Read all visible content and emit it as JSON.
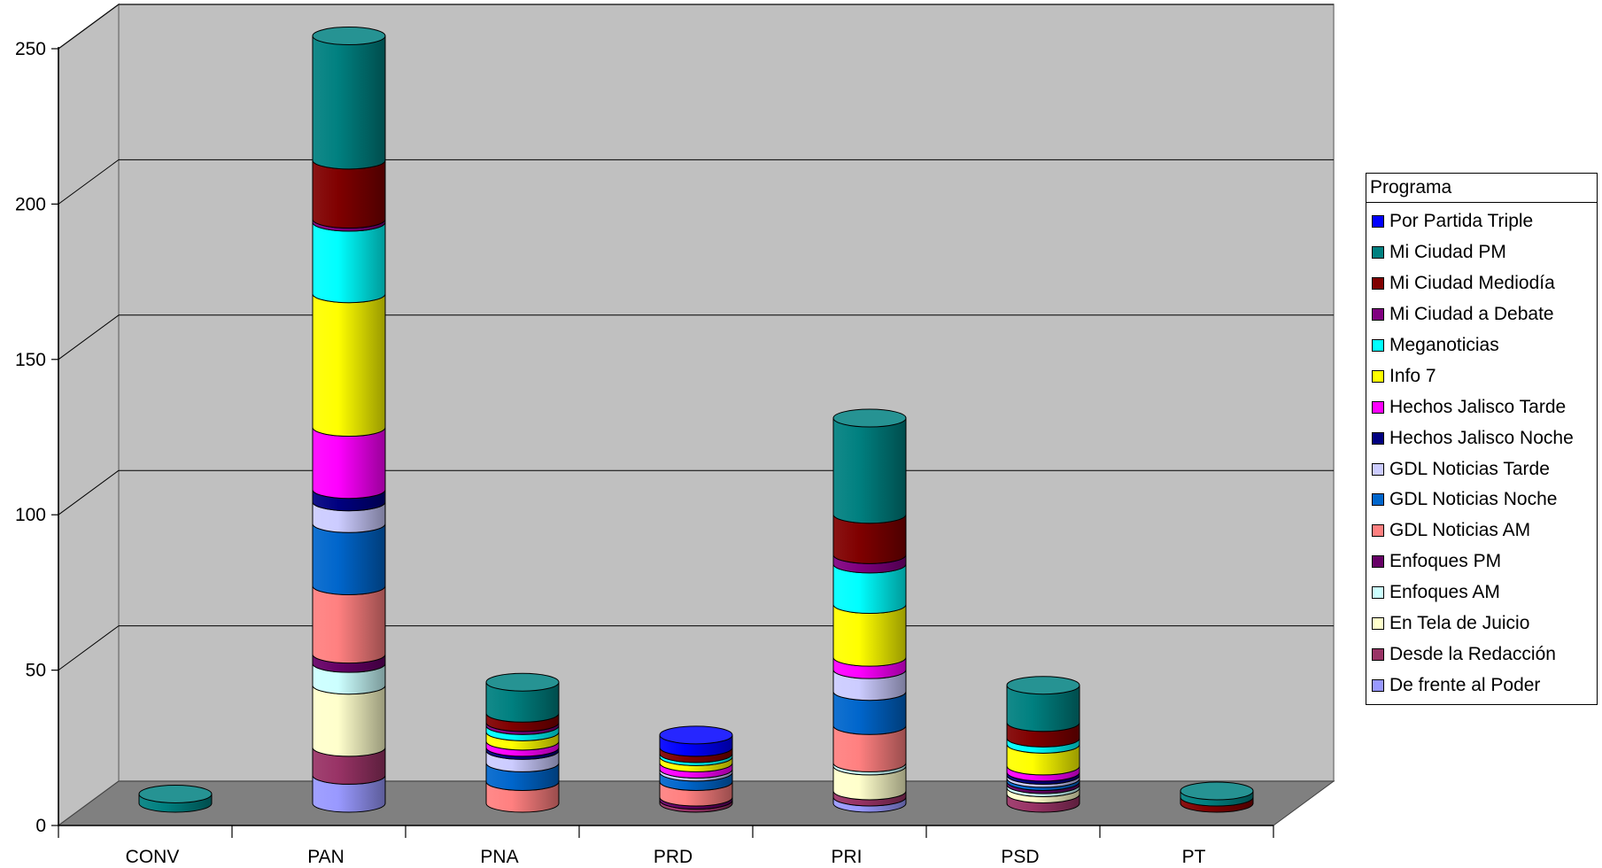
{
  "chart_data": {
    "type": "bar",
    "stacked": true,
    "three_d": true,
    "categories": [
      "CONV",
      "PAN",
      "PNA",
      "PRD",
      "PRI",
      "PSD",
      "PT"
    ],
    "y_ticks": [
      "0",
      "50",
      "100",
      "150",
      "200",
      "250"
    ],
    "ylim": [
      0,
      250
    ],
    "grid": true,
    "legend": {
      "title": "Programa",
      "position": "right"
    },
    "series": [
      {
        "name": "De frente al Poder",
        "color": "#9999ff",
        "values": [
          0,
          9,
          0,
          0,
          2,
          0,
          0
        ]
      },
      {
        "name": "Desde la Redacción",
        "color": "#993366",
        "values": [
          0,
          9,
          0,
          1,
          2,
          3,
          0
        ]
      },
      {
        "name": "En Tela de Juicio",
        "color": "#ffffcc",
        "values": [
          0,
          20,
          0,
          0,
          8,
          2,
          0
        ]
      },
      {
        "name": "Enfoques AM",
        "color": "#ccffff",
        "values": [
          0,
          7,
          0,
          0,
          1,
          1,
          0
        ]
      },
      {
        "name": "Enfoques PM",
        "color": "#660066",
        "values": [
          0,
          3,
          0,
          1,
          0,
          1,
          0
        ]
      },
      {
        "name": "GDL Noticias AM",
        "color": "#ff8080",
        "values": [
          0,
          22,
          7,
          5,
          12,
          0,
          0
        ]
      },
      {
        "name": "GDL Noticias Noche",
        "color": "#0066cc",
        "values": [
          0,
          20,
          6,
          3,
          11,
          1,
          0
        ]
      },
      {
        "name": "GDL Noticias Tarde",
        "color": "#ccccff",
        "values": [
          0,
          7,
          4,
          1,
          7,
          1,
          0
        ]
      },
      {
        "name": "Hechos Jalisco Noche",
        "color": "#000080",
        "values": [
          0,
          4,
          1,
          0,
          0,
          1,
          0
        ]
      },
      {
        "name": "Hechos Jalisco Tarde",
        "color": "#ff00ff",
        "values": [
          0,
          20,
          2,
          2,
          4,
          2,
          0
        ]
      },
      {
        "name": "Info 7",
        "color": "#ffff00",
        "values": [
          0,
          43,
          3,
          2,
          17,
          7,
          0
        ]
      },
      {
        "name": "Meganoticias",
        "color": "#00ffff",
        "values": [
          0,
          23,
          2,
          1,
          13,
          2,
          0
        ]
      },
      {
        "name": "Mi Ciudad a Debate",
        "color": "#800080",
        "values": [
          0,
          1,
          1,
          0,
          3,
          0,
          0
        ]
      },
      {
        "name": "Mi Ciudad Mediodía",
        "color": "#800000",
        "values": [
          0,
          19,
          3,
          2,
          13,
          5,
          2
        ]
      },
      {
        "name": "Mi Ciudad PM",
        "color": "#008080",
        "values": [
          3,
          40,
          10,
          0,
          31,
          12,
          2
        ]
      },
      {
        "name": "Por Partida Triple",
        "color": "#0000ff",
        "values": [
          0,
          0,
          0,
          4,
          0,
          0,
          0
        ]
      }
    ]
  }
}
